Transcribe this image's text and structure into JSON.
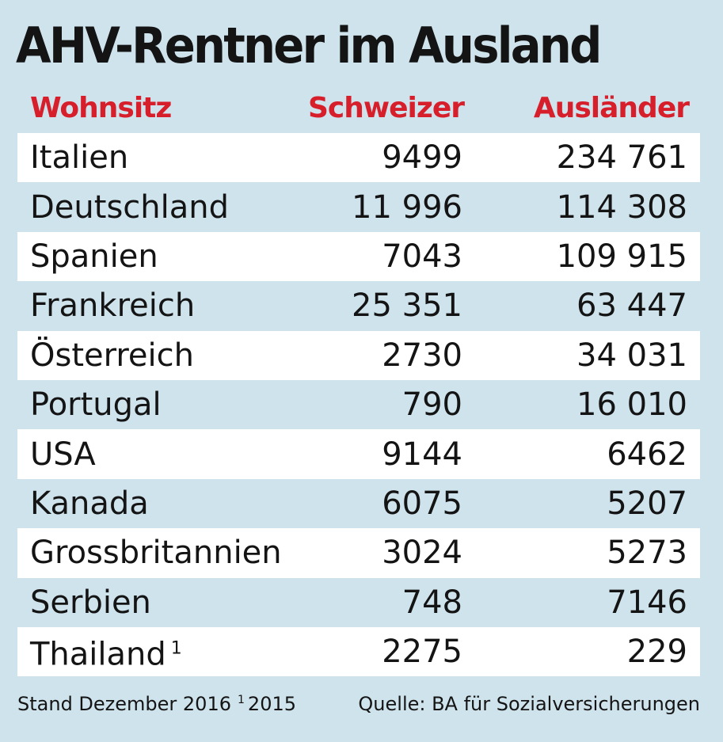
{
  "chart_data": {
    "type": "table",
    "title": "AHV-Rentner im Ausland",
    "columns": [
      "Wohnsitz",
      "Schweizer",
      "Ausländer"
    ],
    "rows": [
      {
        "country": "Italien",
        "note": "",
        "swiss": "9499",
        "foreign": "234 761"
      },
      {
        "country": "Deutschland",
        "note": "",
        "swiss": "11 996",
        "foreign": "114 308"
      },
      {
        "country": "Spanien",
        "note": "",
        "swiss": "7043",
        "foreign": "109 915"
      },
      {
        "country": "Frankreich",
        "note": "",
        "swiss": "25 351",
        "foreign": "63 447"
      },
      {
        "country": "Österreich",
        "note": "",
        "swiss": "2730",
        "foreign": "34 031"
      },
      {
        "country": "Portugal",
        "note": "",
        "swiss": "790",
        "foreign": "16 010"
      },
      {
        "country": "USA",
        "note": "",
        "swiss": "9144",
        "foreign": "6462"
      },
      {
        "country": "Kanada",
        "note": "",
        "swiss": "6075",
        "foreign": "5207"
      },
      {
        "country": "Grossbritannien",
        "note": "",
        "swiss": "3024",
        "foreign": "5273"
      },
      {
        "country": "Serbien",
        "note": "",
        "swiss": "748",
        "foreign": "7146"
      },
      {
        "country": "Thailand",
        "note": "1",
        "swiss": "2275",
        "foreign": "229"
      }
    ]
  },
  "footer": {
    "stand": "Stand Dezember 2016",
    "note_marker": "1",
    "note_year": "2015",
    "source": "Quelle: BA für Sozialversicherungen"
  },
  "colors": {
    "background": "#cfe3ec",
    "header": "#d71e2b",
    "row_stripe": "#ffffff"
  }
}
